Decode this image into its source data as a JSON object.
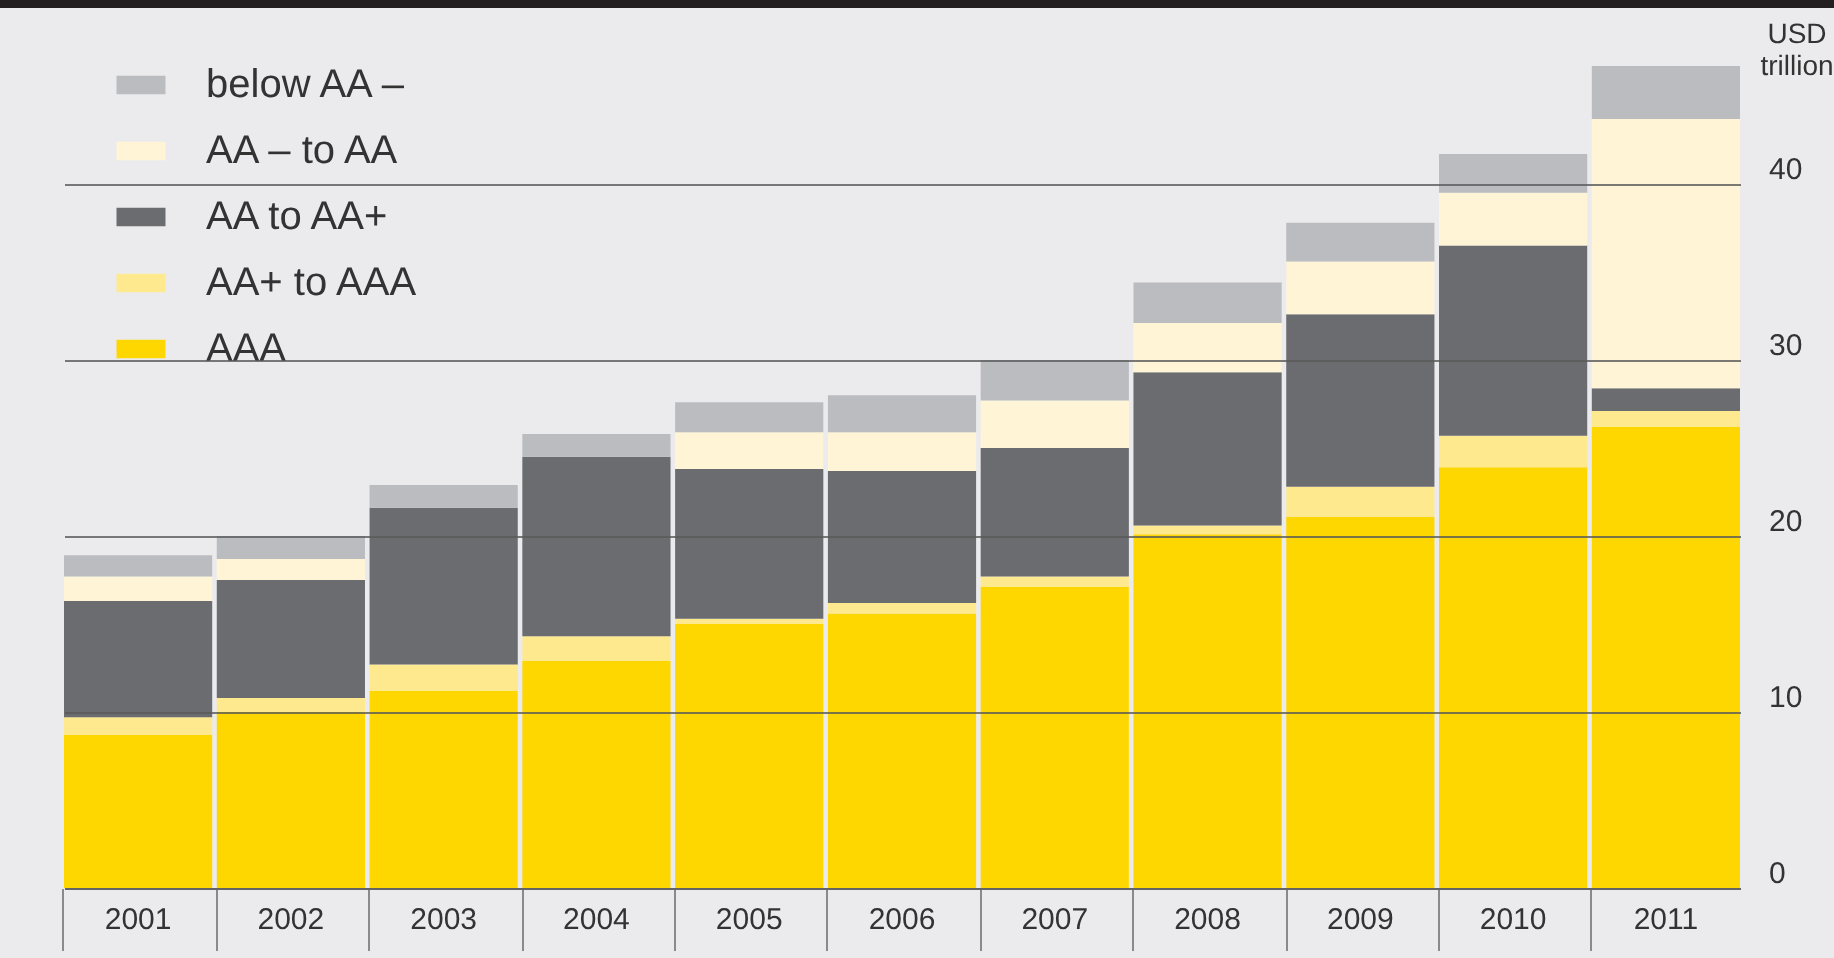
{
  "chart_data": {
    "type": "bar",
    "stacked": true,
    "ylabel": "USD trillion",
    "categories": [
      "2001",
      "2002",
      "2003",
      "2004",
      "2005",
      "2006",
      "2007",
      "2008",
      "2009",
      "2010",
      "2011"
    ],
    "series": [
      {
        "name": "AAA",
        "color": "#ffd700",
        "values": [
          8.7,
          10.0,
          11.2,
          12.9,
          15.0,
          15.6,
          17.1,
          20.1,
          21.1,
          23.9,
          26.2
        ]
      },
      {
        "name": "AA+  to AAA",
        "color": "#ffe98f",
        "values": [
          1.0,
          0.8,
          1.5,
          1.4,
          0.3,
          0.6,
          0.6,
          0.5,
          1.7,
          1.8,
          0.9
        ]
      },
      {
        "name": "AA  to AA+",
        "color": "#6b6c70",
        "values": [
          6.6,
          6.7,
          8.9,
          10.2,
          8.5,
          7.5,
          7.3,
          8.7,
          9.8,
          10.8,
          1.3
        ]
      },
      {
        "name": "AA – to AA",
        "color": "#fff5d6",
        "values": [
          1.4,
          1.2,
          0,
          0,
          2.1,
          2.2,
          2.7,
          2.8,
          3.0,
          3.0,
          15.3
        ]
      },
      {
        "name": "below AA –",
        "color": "#bbbcc0",
        "values": [
          1.2,
          1.3,
          1.3,
          1.3,
          1.7,
          2.1,
          2.3,
          2.3,
          2.2,
          2.2,
          3.0
        ]
      }
    ],
    "ylim": [
      0,
      50
    ],
    "yticks": [
      0,
      10,
      20,
      30,
      40
    ],
    "grid": "y",
    "legend": "top left"
  }
}
